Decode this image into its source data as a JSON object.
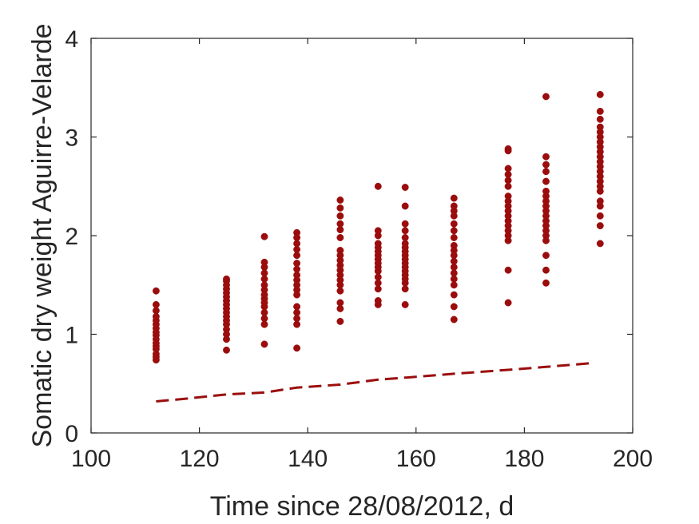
{
  "chart_data": {
    "type": "scatter",
    "title": "",
    "xlabel": "Time since 28/08/2012, d",
    "ylabel": "Somatic dry weight Aguirre-Velarde",
    "xlim": [
      100,
      200
    ],
    "ylim": [
      0,
      4
    ],
    "xticks": [
      "100",
      "120",
      "140",
      "160",
      "180",
      "200"
    ],
    "yticks": [
      "0",
      "1",
      "2",
      "3",
      "4"
    ],
    "grid": false,
    "legend": "none",
    "colors": {
      "points": "#9b0d0d",
      "line": "#9b0d0d",
      "axes": "#262626"
    },
    "series": [
      {
        "type": "scatter",
        "points": [
          [
            112,
            0.74
          ],
          [
            112,
            0.77
          ],
          [
            112,
            0.8
          ],
          [
            112,
            0.85
          ],
          [
            112,
            0.88
          ],
          [
            112,
            0.91
          ],
          [
            112,
            0.95
          ],
          [
            112,
            0.99
          ],
          [
            112,
            1.02
          ],
          [
            112,
            1.06
          ],
          [
            112,
            1.1
          ],
          [
            112,
            1.14
          ],
          [
            112,
            1.18
          ],
          [
            112,
            1.24
          ],
          [
            112,
            1.3
          ],
          [
            112,
            1.44
          ],
          [
            125,
            0.84
          ],
          [
            125,
            0.95
          ],
          [
            125,
            1.0
          ],
          [
            125,
            1.05
          ],
          [
            125,
            1.1
          ],
          [
            125,
            1.14
          ],
          [
            125,
            1.18
          ],
          [
            125,
            1.22
          ],
          [
            125,
            1.26
          ],
          [
            125,
            1.3
          ],
          [
            125,
            1.34
          ],
          [
            125,
            1.38
          ],
          [
            125,
            1.42
          ],
          [
            125,
            1.46
          ],
          [
            125,
            1.5
          ],
          [
            125,
            1.54
          ],
          [
            125,
            1.56
          ],
          [
            132,
            0.9
          ],
          [
            132,
            1.1
          ],
          [
            132,
            1.16
          ],
          [
            132,
            1.22
          ],
          [
            132,
            1.28
          ],
          [
            132,
            1.32
          ],
          [
            132,
            1.36
          ],
          [
            132,
            1.4
          ],
          [
            132,
            1.45
          ],
          [
            132,
            1.5
          ],
          [
            132,
            1.56
          ],
          [
            132,
            1.62
          ],
          [
            132,
            1.68
          ],
          [
            132,
            1.73
          ],
          [
            132,
            1.99
          ],
          [
            138,
            0.86
          ],
          [
            138,
            1.1
          ],
          [
            138,
            1.16
          ],
          [
            138,
            1.22
          ],
          [
            138,
            1.28
          ],
          [
            138,
            1.4
          ],
          [
            138,
            1.45
          ],
          [
            138,
            1.5
          ],
          [
            138,
            1.55
          ],
          [
            138,
            1.6
          ],
          [
            138,
            1.66
          ],
          [
            138,
            1.72
          ],
          [
            138,
            1.8
          ],
          [
            138,
            1.86
          ],
          [
            138,
            1.92
          ],
          [
            138,
            1.98
          ],
          [
            138,
            2.03
          ],
          [
            146,
            1.13
          ],
          [
            146,
            1.26
          ],
          [
            146,
            1.32
          ],
          [
            146,
            1.44
          ],
          [
            146,
            1.5
          ],
          [
            146,
            1.55
          ],
          [
            146,
            1.6
          ],
          [
            146,
            1.65
          ],
          [
            146,
            1.7
          ],
          [
            146,
            1.75
          ],
          [
            146,
            1.8
          ],
          [
            146,
            1.85
          ],
          [
            146,
            1.98
          ],
          [
            146,
            2.06
          ],
          [
            146,
            2.12
          ],
          [
            146,
            2.2
          ],
          [
            146,
            2.28
          ],
          [
            146,
            2.36
          ],
          [
            153,
            1.3
          ],
          [
            153,
            1.34
          ],
          [
            153,
            1.46
          ],
          [
            153,
            1.52
          ],
          [
            153,
            1.58
          ],
          [
            153,
            1.64
          ],
          [
            153,
            1.68
          ],
          [
            153,
            1.72
          ],
          [
            153,
            1.76
          ],
          [
            153,
            1.8
          ],
          [
            153,
            1.84
          ],
          [
            153,
            1.88
          ],
          [
            153,
            1.92
          ],
          [
            153,
            2.0
          ],
          [
            153,
            2.05
          ],
          [
            153,
            2.5
          ],
          [
            158,
            1.3
          ],
          [
            158,
            1.46
          ],
          [
            158,
            1.52
          ],
          [
            158,
            1.56
          ],
          [
            158,
            1.6
          ],
          [
            158,
            1.64
          ],
          [
            158,
            1.68
          ],
          [
            158,
            1.72
          ],
          [
            158,
            1.76
          ],
          [
            158,
            1.8
          ],
          [
            158,
            1.84
          ],
          [
            158,
            1.88
          ],
          [
            158,
            1.92
          ],
          [
            158,
            1.98
          ],
          [
            158,
            2.05
          ],
          [
            158,
            2.12
          ],
          [
            158,
            2.3
          ],
          [
            158,
            2.49
          ],
          [
            167,
            1.15
          ],
          [
            167,
            1.28
          ],
          [
            167,
            1.4
          ],
          [
            167,
            1.5
          ],
          [
            167,
            1.56
          ],
          [
            167,
            1.62
          ],
          [
            167,
            1.68
          ],
          [
            167,
            1.74
          ],
          [
            167,
            1.8
          ],
          [
            167,
            1.85
          ],
          [
            167,
            1.9
          ],
          [
            167,
            1.98
          ],
          [
            167,
            2.05
          ],
          [
            167,
            2.12
          ],
          [
            167,
            2.2
          ],
          [
            167,
            2.25
          ],
          [
            167,
            2.3
          ],
          [
            167,
            2.38
          ],
          [
            177,
            1.32
          ],
          [
            177,
            1.65
          ],
          [
            177,
            1.95
          ],
          [
            177,
            2.0
          ],
          [
            177,
            2.05
          ],
          [
            177,
            2.1
          ],
          [
            177,
            2.15
          ],
          [
            177,
            2.2
          ],
          [
            177,
            2.25
          ],
          [
            177,
            2.3
          ],
          [
            177,
            2.35
          ],
          [
            177,
            2.4
          ],
          [
            177,
            2.5
          ],
          [
            177,
            2.56
          ],
          [
            177,
            2.62
          ],
          [
            177,
            2.68
          ],
          [
            177,
            2.86
          ],
          [
            177,
            2.88
          ],
          [
            184,
            1.52
          ],
          [
            184,
            1.65
          ],
          [
            184,
            1.8
          ],
          [
            184,
            1.95
          ],
          [
            184,
            2.0
          ],
          [
            184,
            2.05
          ],
          [
            184,
            2.1
          ],
          [
            184,
            2.15
          ],
          [
            184,
            2.2
          ],
          [
            184,
            2.25
          ],
          [
            184,
            2.3
          ],
          [
            184,
            2.35
          ],
          [
            184,
            2.4
          ],
          [
            184,
            2.45
          ],
          [
            184,
            2.55
          ],
          [
            184,
            2.65
          ],
          [
            184,
            2.72
          ],
          [
            184,
            2.8
          ],
          [
            184,
            3.41
          ],
          [
            194,
            1.92
          ],
          [
            194,
            2.1
          ],
          [
            194,
            2.2
          ],
          [
            194,
            2.3
          ],
          [
            194,
            2.35
          ],
          [
            194,
            2.45
          ],
          [
            194,
            2.5
          ],
          [
            194,
            2.55
          ],
          [
            194,
            2.6
          ],
          [
            194,
            2.65
          ],
          [
            194,
            2.7
          ],
          [
            194,
            2.75
          ],
          [
            194,
            2.8
          ],
          [
            194,
            2.85
          ],
          [
            194,
            2.9
          ],
          [
            194,
            2.95
          ],
          [
            194,
            3.0
          ],
          [
            194,
            3.05
          ],
          [
            194,
            3.1
          ],
          [
            194,
            3.18
          ],
          [
            194,
            3.26
          ],
          [
            194,
            3.43
          ]
        ]
      },
      {
        "type": "line",
        "style": "dashed",
        "x": [
          112,
          118,
          125,
          132,
          138,
          146,
          153,
          158,
          167,
          177,
          184,
          193
        ],
        "y": [
          0.32,
          0.35,
          0.39,
          0.41,
          0.46,
          0.49,
          0.54,
          0.56,
          0.6,
          0.64,
          0.67,
          0.71
        ]
      }
    ]
  }
}
